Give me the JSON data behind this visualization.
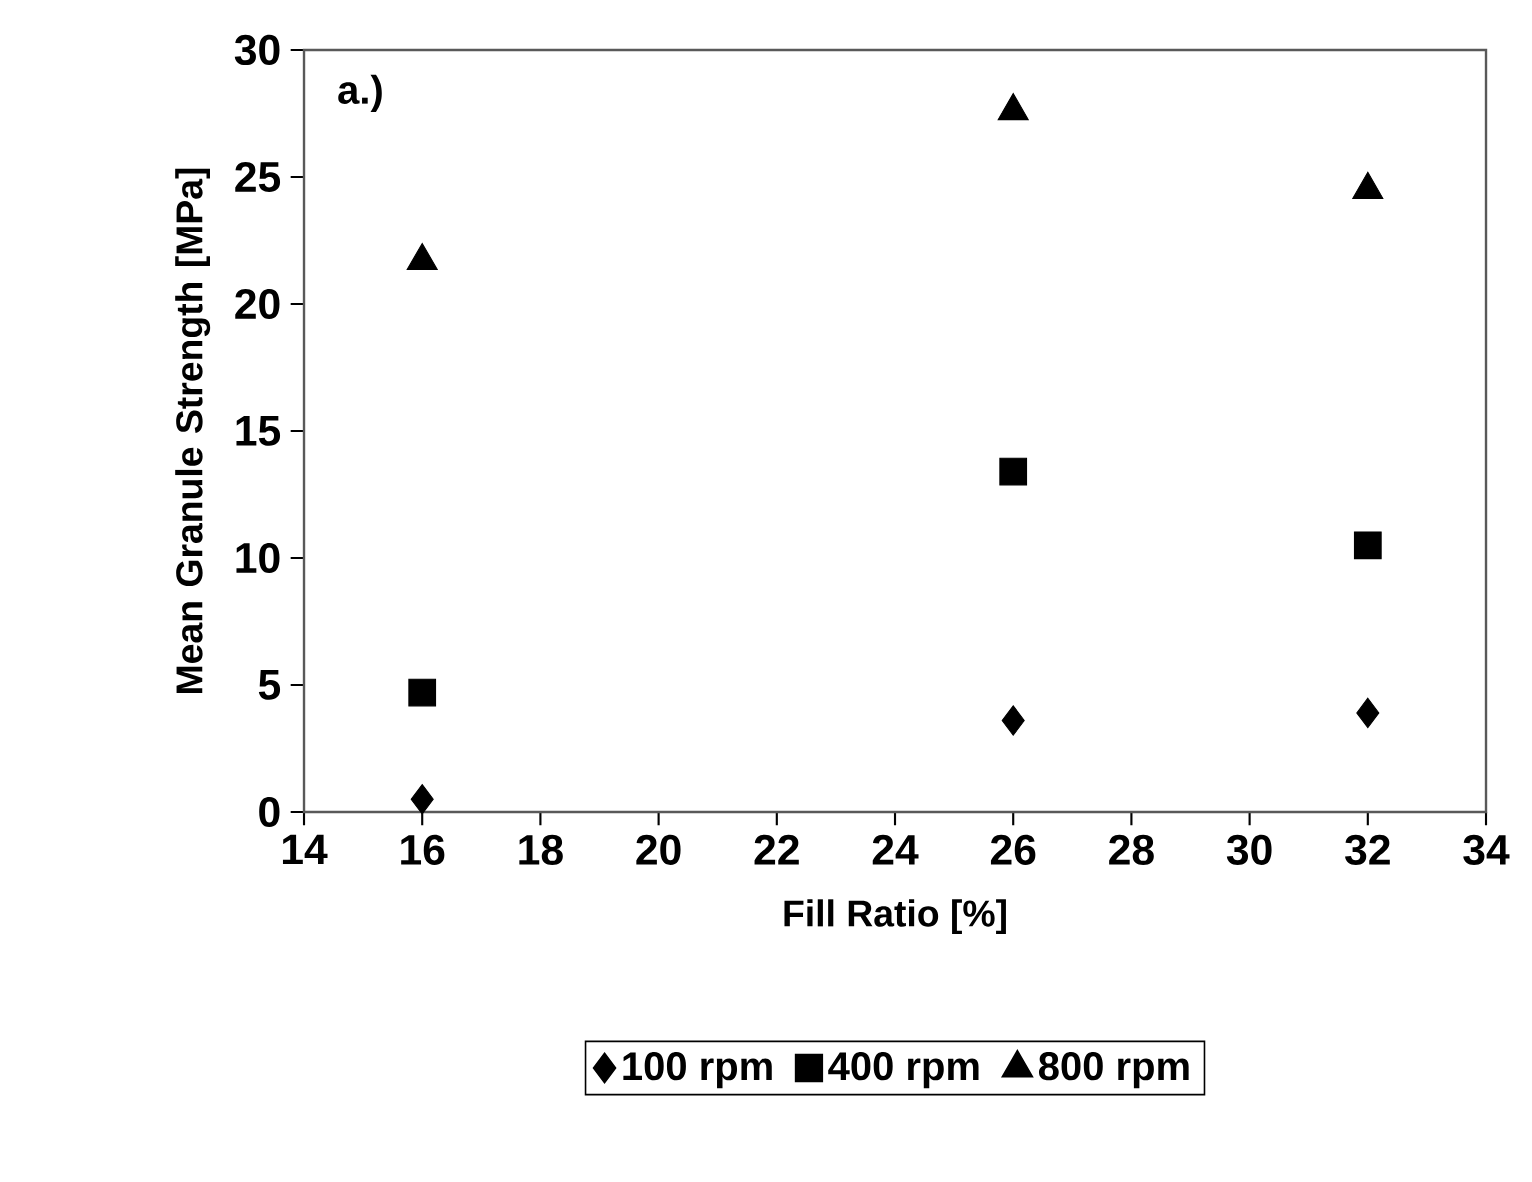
{
  "chart_data": {
    "type": "scatter",
    "xlabel": "Fill Ratio [%]",
    "ylabel": "Mean Granule Strength [MPa]",
    "annotations": [
      "a.)"
    ],
    "x": [
      16,
      26,
      32
    ],
    "series": [
      {
        "name": "100 rpm",
        "color": "#000000",
        "marker": "diamond",
        "values": [
          0.5,
          3.6,
          3.9
        ]
      },
      {
        "name": "400 rpm",
        "color": "#000000",
        "marker": "square",
        "values": [
          4.7,
          13.4,
          10.5
        ]
      },
      {
        "name": "800 rpm",
        "color": "#000000",
        "marker": "triangle",
        "values": [
          21.7,
          27.6,
          24.5
        ]
      }
    ],
    "xlim": [
      14,
      34
    ],
    "xticks": [
      14,
      16,
      18,
      20,
      22,
      24,
      26,
      28,
      30,
      32,
      34
    ],
    "ylim": [
      0,
      30
    ],
    "yticks": [
      0,
      5,
      10,
      15,
      20,
      25,
      30
    ],
    "grid": false,
    "legend": "bottom"
  }
}
